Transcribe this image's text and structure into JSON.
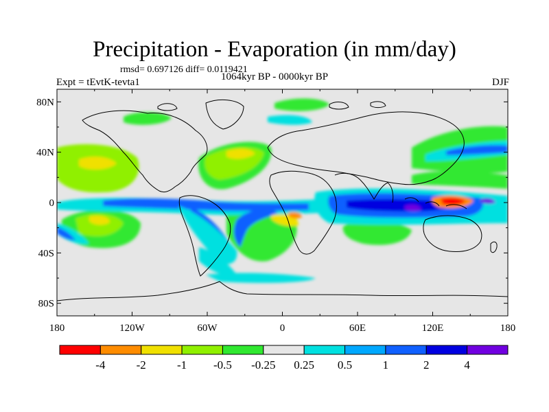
{
  "title": "Precipitation - Evaporation (in mm/day)",
  "stats_text": "rmsd= 0.697126 diff= 0.0119421",
  "experiment_text": "Expt = tEvtK-tevta1",
  "period_text": "1064kyr BP - 0000kyr BP",
  "season": "DJF",
  "map": {
    "projection": "cylindrical-equidistant",
    "lon_range": [
      -180,
      180
    ],
    "lat_range": [
      -90,
      90
    ],
    "x_tick_labels": [
      "180",
      "120W",
      "60W",
      "0",
      "60E",
      "120E",
      "180"
    ],
    "y_tick_labels": [
      "80N",
      "40N",
      "0",
      "40S",
      "80S"
    ],
    "ocean_fill": "#e6e6e6",
    "coastline_color": "#000000"
  },
  "colorbar": {
    "levels": [
      "-4",
      "-2",
      "-1",
      "-0.5",
      "-0.25",
      "0.25",
      "0.5",
      "1",
      "2",
      "4"
    ],
    "colors": [
      "#ff0000",
      "#ff8c00",
      "#f0e000",
      "#90f000",
      "#30e830",
      "#e6e6e6",
      "#00e0e0",
      "#00a8ff",
      "#1060ff",
      "#0000e0",
      "#7000e0"
    ]
  }
}
